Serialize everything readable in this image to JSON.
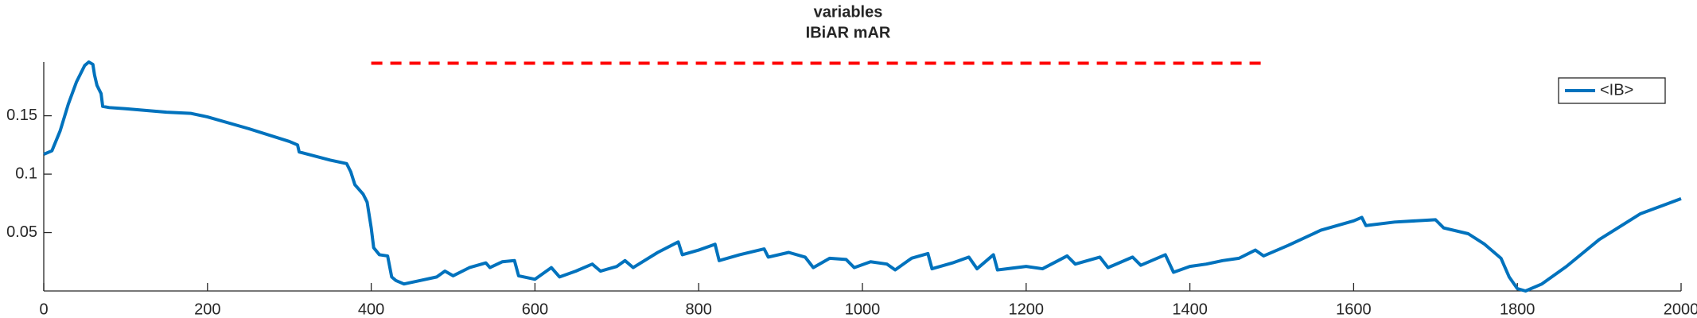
{
  "chart_data": {
    "type": "line",
    "title": "variables",
    "subtitle": "IBiAR mAR",
    "x": [
      0,
      10,
      20,
      30,
      40,
      50,
      55,
      60,
      62,
      65,
      70,
      72,
      80,
      100,
      150,
      180,
      200,
      250,
      300,
      310,
      312,
      350,
      370,
      375,
      380,
      390,
      395,
      400,
      403,
      410,
      420,
      425,
      430,
      440,
      460,
      480,
      490,
      500,
      520,
      540,
      545,
      560,
      575,
      580,
      600,
      620,
      630,
      650,
      670,
      680,
      700,
      710,
      720,
      750,
      775,
      780,
      800,
      820,
      825,
      850,
      880,
      885,
      910,
      930,
      940,
      960,
      980,
      990,
      1010,
      1030,
      1040,
      1060,
      1080,
      1085,
      1110,
      1130,
      1140,
      1160,
      1165,
      1200,
      1220,
      1250,
      1260,
      1290,
      1300,
      1330,
      1340,
      1370,
      1380,
      1400,
      1420,
      1440,
      1460,
      1480,
      1490,
      1520,
      1560,
      1600,
      1610,
      1615,
      1650,
      1700,
      1710,
      1740,
      1760,
      1780,
      1790,
      1800,
      1810,
      1830,
      1860,
      1900,
      1950,
      2000
    ],
    "series": [
      {
        "name": "<IB>",
        "color": "#0072bd",
        "values": [
          0.117,
          0.12,
          0.137,
          0.16,
          0.179,
          0.193,
          0.196,
          0.194,
          0.185,
          0.176,
          0.169,
          0.158,
          0.157,
          0.156,
          0.153,
          0.152,
          0.149,
          0.139,
          0.128,
          0.125,
          0.119,
          0.112,
          0.109,
          0.102,
          0.091,
          0.083,
          0.076,
          0.054,
          0.037,
          0.031,
          0.03,
          0.012,
          0.009,
          0.006,
          0.009,
          0.012,
          0.017,
          0.013,
          0.02,
          0.024,
          0.02,
          0.025,
          0.026,
          0.013,
          0.01,
          0.02,
          0.012,
          0.017,
          0.023,
          0.017,
          0.021,
          0.026,
          0.02,
          0.033,
          0.042,
          0.031,
          0.035,
          0.04,
          0.026,
          0.031,
          0.036,
          0.029,
          0.033,
          0.029,
          0.02,
          0.028,
          0.027,
          0.02,
          0.025,
          0.023,
          0.018,
          0.028,
          0.032,
          0.019,
          0.024,
          0.029,
          0.019,
          0.031,
          0.018,
          0.021,
          0.019,
          0.03,
          0.023,
          0.029,
          0.02,
          0.029,
          0.022,
          0.031,
          0.016,
          0.021,
          0.023,
          0.026,
          0.028,
          0.035,
          0.03,
          0.039,
          0.052,
          0.06,
          0.063,
          0.056,
          0.059,
          0.061,
          0.054,
          0.049,
          0.04,
          0.028,
          0.012,
          0.002,
          0.0,
          0.006,
          0.021,
          0.044,
          0.066,
          0.079
        ]
      }
    ],
    "hline": {
      "y": 0.195,
      "xmin": 400,
      "xmax": 1490,
      "color": "#ff0000"
    },
    "xlim": [
      0,
      2000
    ],
    "xticks": [
      0,
      200,
      400,
      600,
      800,
      1000,
      1200,
      1400,
      1600,
      1800,
      2000
    ],
    "ylim": [
      0,
      0.196
    ],
    "yticks": [
      0.05,
      0.1,
      0.15
    ],
    "legend": "northeast"
  }
}
